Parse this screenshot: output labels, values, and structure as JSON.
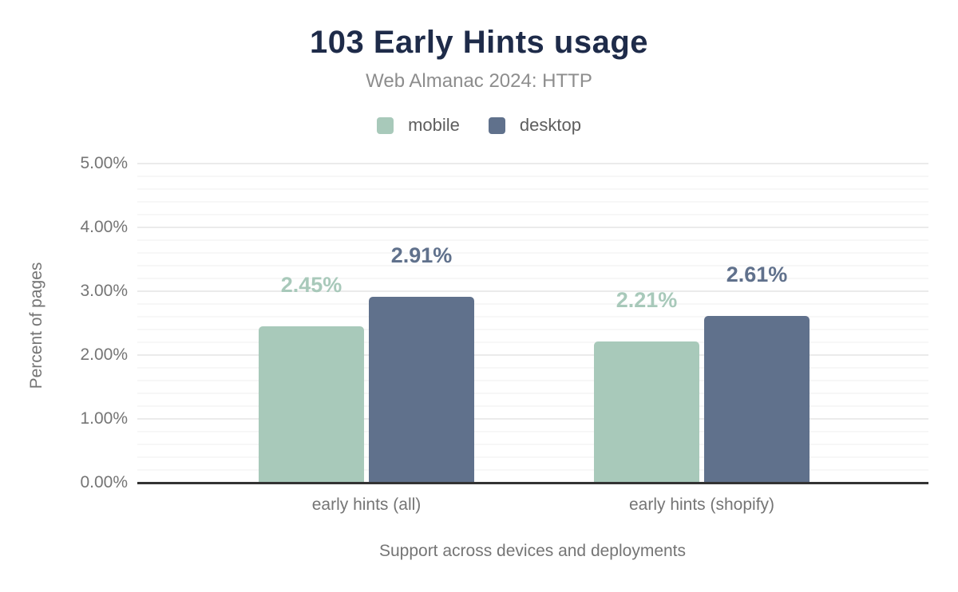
{
  "chart_data": {
    "type": "bar",
    "title": "103 Early Hints usage",
    "subtitle": "Web Almanac 2024: HTTP",
    "categories": [
      "early hints (all)",
      "early hints (shopify)"
    ],
    "series": [
      {
        "name": "mobile",
        "color": "#a8c9ba",
        "values": [
          2.45,
          2.21
        ],
        "labels": [
          "2.45%",
          "2.21%"
        ]
      },
      {
        "name": "desktop",
        "color": "#60718c",
        "values": [
          2.91,
          2.61
        ],
        "labels": [
          "2.91%",
          "2.61%"
        ]
      }
    ],
    "xlabel": "Support across devices and deployments",
    "ylabel": "Percent of pages",
    "y_ticks": [
      {
        "label": "5.00%",
        "value": 5
      },
      {
        "label": "4.00%",
        "value": 4
      },
      {
        "label": "3.00%",
        "value": 3
      },
      {
        "label": "2.00%",
        "value": 2
      },
      {
        "label": "1.00%",
        "value": 1
      },
      {
        "label": "0.00%",
        "value": 0
      }
    ],
    "ylim": [
      0,
      5
    ],
    "y_minor_gridline_step_pct": 0.2,
    "grid": "on",
    "legend_position": "top-center",
    "colors": {
      "title": "#1e2b49",
      "subtitle": "#8d8d8d",
      "axis_text": "#757575",
      "legend_text": "#5e5e5e",
      "axis_line": "#333333",
      "gridline_major": "#ebebeb",
      "gridline_minor": "#f7f7f7",
      "background": "#ffffff"
    }
  }
}
